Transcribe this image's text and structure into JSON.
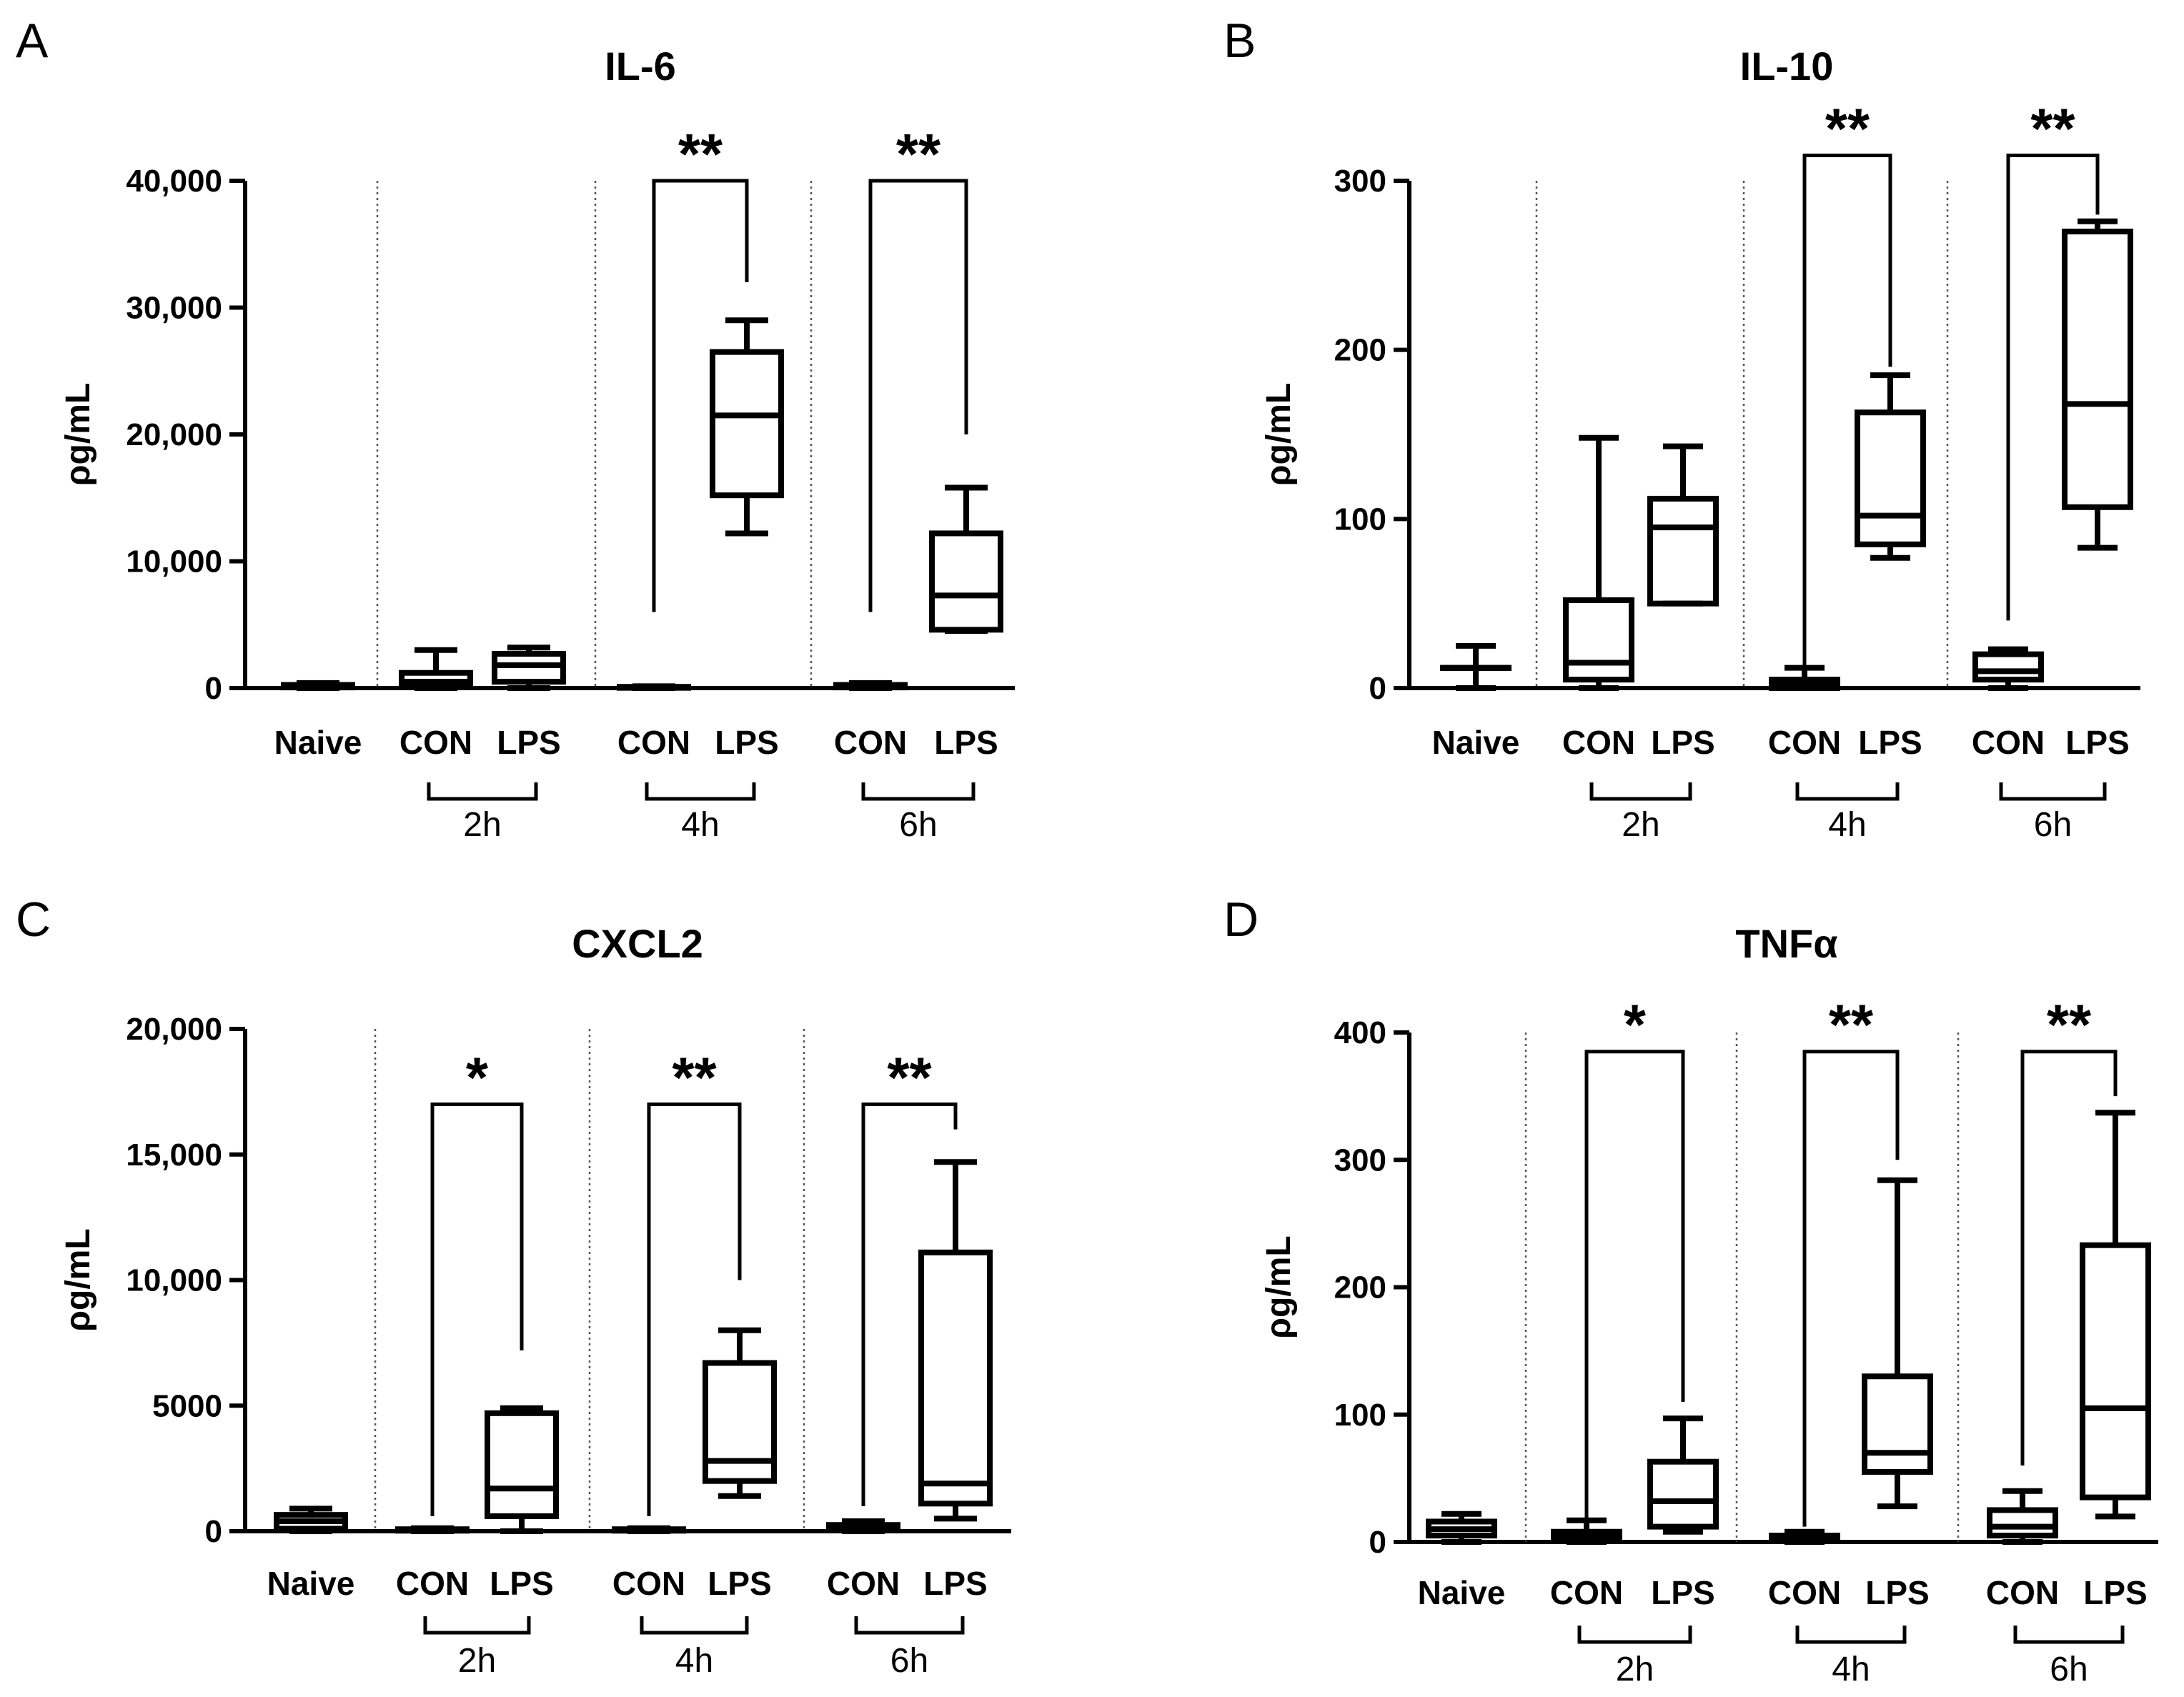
{
  "chart_data": [
    {
      "type": "box",
      "panel_letter": "A",
      "title": "IL-6",
      "ylabel": "ρg/mL",
      "ylim": [
        0,
        40000
      ],
      "yticks": [
        0,
        10000,
        20000,
        30000,
        40000
      ],
      "ytick_labels": [
        "0",
        "10,000",
        "20,000",
        "30,000",
        "40,000"
      ],
      "categories": [
        "Naive",
        "CON",
        "LPS",
        "CON",
        "LPS",
        "CON",
        "LPS"
      ],
      "time_groups": [
        {
          "label": "2h",
          "from": 1,
          "to": 2
        },
        {
          "label": "4h",
          "from": 3,
          "to": 4
        },
        {
          "label": "6h",
          "from": 5,
          "to": 6
        }
      ],
      "boxes": [
        {
          "min": 0,
          "q1": 50,
          "median": 150,
          "q3": 250,
          "max": 400
        },
        {
          "min": 0,
          "q1": 200,
          "median": 500,
          "q3": 1200,
          "max": 3000
        },
        {
          "min": 0,
          "q1": 500,
          "median": 1800,
          "q3": 2700,
          "max": 3200
        },
        {
          "min": 0,
          "q1": 20,
          "median": 50,
          "q3": 100,
          "max": 150
        },
        {
          "min": 12200,
          "q1": 15200,
          "median": 21500,
          "q3": 26500,
          "max": 29000
        },
        {
          "min": 0,
          "q1": 50,
          "median": 150,
          "q3": 250,
          "max": 400
        },
        {
          "min": 4500,
          "q1": 4600,
          "median": 7300,
          "q3": 12200,
          "max": 15800
        }
      ],
      "significance": [
        {
          "from": 3,
          "to": 4,
          "label": "**",
          "y_left": 6000,
          "y_right": 32000,
          "y_top": 40000
        },
        {
          "from": 5,
          "to": 6,
          "label": "**",
          "y_left": 6000,
          "y_right": 20000,
          "y_top": 40000
        }
      ]
    },
    {
      "type": "box",
      "panel_letter": "B",
      "title": "IL-10",
      "ylabel": "ρg/mL",
      "ylim": [
        0,
        300
      ],
      "yticks": [
        0,
        100,
        200,
        300
      ],
      "ytick_labels": [
        "0",
        "100",
        "200",
        "300"
      ],
      "categories": [
        "Naive",
        "CON",
        "LPS",
        "CON",
        "LPS",
        "CON",
        "LPS"
      ],
      "time_groups": [
        {
          "label": "2h",
          "from": 1,
          "to": 2
        },
        {
          "label": "4h",
          "from": 3,
          "to": 4
        },
        {
          "label": "6h",
          "from": 5,
          "to": 6
        }
      ],
      "boxes": [
        {
          "min": 0,
          "q1": 12,
          "median": 12,
          "q3": 12,
          "max": 25
        },
        {
          "min": 0,
          "q1": 5,
          "median": 15,
          "q3": 52,
          "max": 148
        },
        {
          "min": 50,
          "q1": 50,
          "median": 95,
          "q3": 112,
          "max": 143
        },
        {
          "min": 0,
          "q1": 0,
          "median": 3,
          "q3": 5,
          "max": 12
        },
        {
          "min": 77,
          "q1": 85,
          "median": 102,
          "q3": 163,
          "max": 185
        },
        {
          "min": 0,
          "q1": 5,
          "median": 10,
          "q3": 20,
          "max": 23
        },
        {
          "min": 83,
          "q1": 107,
          "median": 168,
          "q3": 270,
          "max": 276
        }
      ],
      "significance": [
        {
          "from": 3,
          "to": 4,
          "label": "**",
          "y_left": 10,
          "y_right": 190,
          "y_top": 315
        },
        {
          "from": 5,
          "to": 6,
          "label": "**",
          "y_left": 40,
          "y_right": 280,
          "y_top": 315
        }
      ]
    },
    {
      "type": "box",
      "panel_letter": "C",
      "title": "CXCL2",
      "ylabel": "ρg/mL",
      "ylim": [
        0,
        20000
      ],
      "yticks": [
        0,
        5000,
        10000,
        15000,
        20000
      ],
      "ytick_labels": [
        "0",
        "5000",
        "10,000",
        "15,000",
        "20,000"
      ],
      "categories": [
        "Naive",
        "CON",
        "LPS",
        "CON",
        "LPS",
        "CON",
        "LPS"
      ],
      "time_groups": [
        {
          "label": "2h",
          "from": 1,
          "to": 2
        },
        {
          "label": "4h",
          "from": 3,
          "to": 4
        },
        {
          "label": "6h",
          "from": 5,
          "to": 6
        }
      ],
      "boxes": [
        {
          "min": 0,
          "q1": 100,
          "median": 400,
          "q3": 650,
          "max": 900
        },
        {
          "min": 0,
          "q1": 20,
          "median": 50,
          "q3": 80,
          "max": 120
        },
        {
          "min": 0,
          "q1": 600,
          "median": 1700,
          "q3": 4700,
          "max": 4900
        },
        {
          "min": 0,
          "q1": 20,
          "median": 50,
          "q3": 80,
          "max": 120
        },
        {
          "min": 1400,
          "q1": 2000,
          "median": 2800,
          "q3": 6700,
          "max": 8000
        },
        {
          "min": 0,
          "q1": 50,
          "median": 150,
          "q3": 250,
          "max": 400
        },
        {
          "min": 500,
          "q1": 1100,
          "median": 1900,
          "q3": 11100,
          "max": 14700
        }
      ],
      "significance": [
        {
          "from": 1,
          "to": 2,
          "label": "*",
          "y_left": 600,
          "y_right": 7200,
          "y_top": 17000
        },
        {
          "from": 3,
          "to": 4,
          "label": "**",
          "y_left": 600,
          "y_right": 10000,
          "y_top": 17000
        },
        {
          "from": 5,
          "to": 6,
          "label": "**",
          "y_left": 1000,
          "y_right": 16000,
          "y_top": 17000
        }
      ]
    },
    {
      "type": "box",
      "panel_letter": "D",
      "title": "TNFα",
      "ylabel": "ρg/mL",
      "ylim": [
        0,
        400
      ],
      "yticks": [
        0,
        100,
        200,
        300,
        400
      ],
      "ytick_labels": [
        "0",
        "100",
        "200",
        "300",
        "400"
      ],
      "categories": [
        "Naive",
        "CON",
        "LPS",
        "CON",
        "LPS",
        "CON",
        "LPS"
      ],
      "time_groups": [
        {
          "label": "2h",
          "from": 1,
          "to": 2
        },
        {
          "label": "4h",
          "from": 3,
          "to": 4
        },
        {
          "label": "6h",
          "from": 5,
          "to": 6
        }
      ],
      "boxes": [
        {
          "min": 0,
          "q1": 5,
          "median": 10,
          "q3": 16,
          "max": 22
        },
        {
          "min": 0,
          "q1": 2,
          "median": 5,
          "q3": 8,
          "max": 17
        },
        {
          "min": 8,
          "q1": 12,
          "median": 32,
          "q3": 63,
          "max": 97
        },
        {
          "min": 0,
          "q1": 1,
          "median": 3,
          "q3": 5,
          "max": 8
        },
        {
          "min": 28,
          "q1": 55,
          "median": 70,
          "q3": 130,
          "max": 284
        },
        {
          "min": 0,
          "q1": 5,
          "median": 12,
          "q3": 25,
          "max": 40
        },
        {
          "min": 20,
          "q1": 35,
          "median": 105,
          "q3": 233,
          "max": 337
        }
      ],
      "significance": [
        {
          "from": 1,
          "to": 2,
          "label": "*",
          "y_left": 12,
          "y_right": 110,
          "y_top": 385
        },
        {
          "from": 3,
          "to": 4,
          "label": "**",
          "y_left": 12,
          "y_right": 300,
          "y_top": 385
        },
        {
          "from": 5,
          "to": 6,
          "label": "**",
          "y_left": 60,
          "y_right": 350,
          "y_top": 385
        }
      ]
    }
  ]
}
